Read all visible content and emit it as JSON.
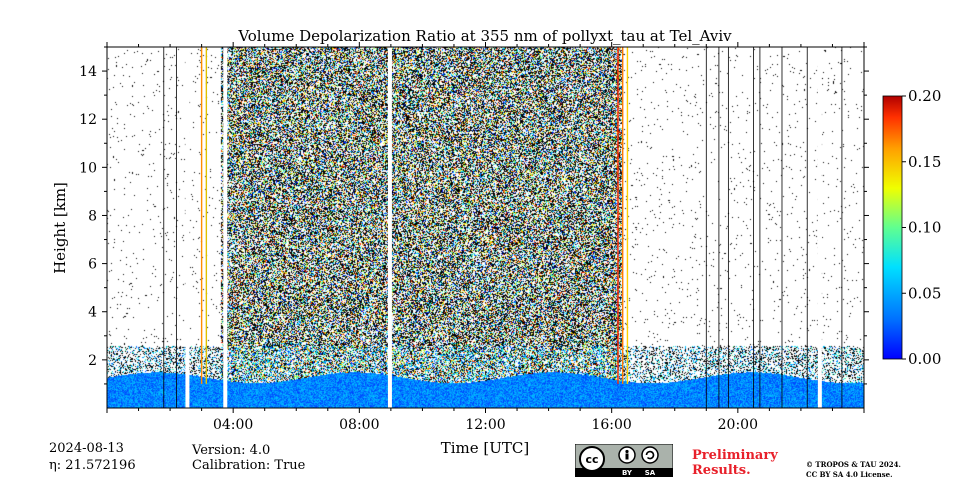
{
  "chart_data": {
    "type": "heatmap",
    "title": "Volume Depolarization Ratio at 355 nm of pollyxt_tau at Tel_Aviv",
    "xlabel": "Time [UTC]",
    "ylabel": "Height [km]",
    "xlim_hours": [
      0,
      24
    ],
    "ylim": [
      0,
      15
    ],
    "x_ticks": [
      {
        "hour": 4,
        "label": "04:00"
      },
      {
        "hour": 8,
        "label": "08:00"
      },
      {
        "hour": 12,
        "label": "12:00"
      },
      {
        "hour": 16,
        "label": "16:00"
      },
      {
        "hour": 20,
        "label": "20:00"
      }
    ],
    "y_ticks": [
      {
        "value": 2,
        "label": "2"
      },
      {
        "value": 4,
        "label": "4"
      },
      {
        "value": 6,
        "label": "6"
      },
      {
        "value": 8,
        "label": "8"
      },
      {
        "value": 10,
        "label": "10"
      },
      {
        "value": 12,
        "label": "12"
      },
      {
        "value": 14,
        "label": "14"
      }
    ],
    "colorbar": {
      "min": 0.0,
      "max": 0.2,
      "colormap": "jet",
      "ticks": [
        {
          "value": 0.0,
          "label": "0.00"
        },
        {
          "value": 0.05,
          "label": "0.05"
        },
        {
          "value": 0.1,
          "label": "0.10"
        },
        {
          "value": 0.15,
          "label": "0.15"
        },
        {
          "value": 0.2,
          "label": "0.20"
        }
      ]
    },
    "noisy_period_hours": [
      3.6,
      16.3
    ],
    "data_gaps_hours": [
      2.55,
      3.75,
      8.97,
      22.6
    ],
    "boundary_layer_top_km": 1.5
  },
  "info": {
    "date": "2024-08-13",
    "eta": "η: 21.572196",
    "version": "Version: 4.0",
    "calibration": "Calibration: True"
  },
  "footer": {
    "preliminary_line1": "Preliminary",
    "preliminary_line2": "Results.",
    "copyright_line1": "© TROPOS & TAU 2024.",
    "copyright_line2": "CC BY SA 4.0 License.",
    "license_badge_by": "BY",
    "license_badge_sa": "SA",
    "license_badge_cc": "cc"
  }
}
